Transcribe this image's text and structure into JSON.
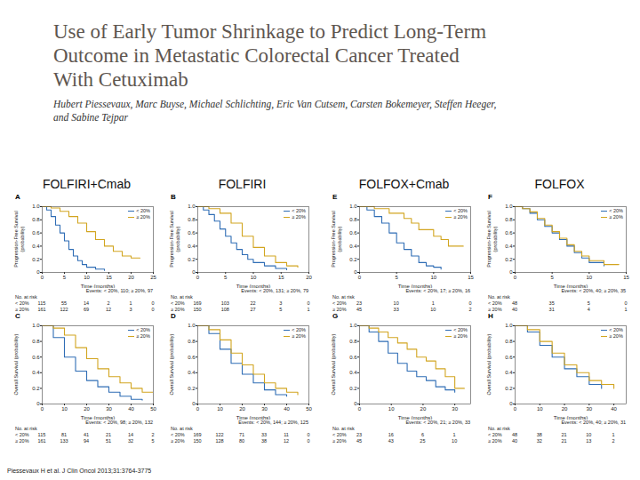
{
  "header": {
    "title_lines": [
      "Use of Early Tumor Shrinkage to Predict Long-Term",
      "Outcome in Metastatic Colorectal Cancer Treated",
      "With Cetuximab"
    ],
    "authors_lines": [
      "Hubert Piessevaux, Marc Buyse, Michael Schlichting, Eric Van Cutsem, Carsten Bokemeyer, Steffen Heeger,",
      "and Sabine Tejpar"
    ],
    "columns": [
      "FOLFIRI+Cmab",
      "FOLFIRI",
      "FOLFOX+Cmab",
      "FOLFOX"
    ]
  },
  "footer": "Piessevaux H et al. J Clin Oncol 2013;31:3764-3775",
  "chart_data": [
    {
      "type": "line",
      "title": "A",
      "line_style": "step",
      "legend": "top-right",
      "x_label": "Time (months)",
      "y_label": "Progression-Free Survival (probability)",
      "xlim": [
        0,
        25
      ],
      "xticks": [
        0,
        5,
        10,
        15,
        20,
        25
      ],
      "ylim": [
        0,
        1
      ],
      "yticks": [
        0,
        0.2,
        0.4,
        0.6,
        0.8,
        {
          "value": 1,
          "label": "1.0"
        }
      ],
      "annotation": "Events: < 20%, 110; ≥ 20%, 97",
      "series": [
        {
          "name": "< 20%",
          "color": "#2f6db5",
          "x": [
            0,
            1,
            2,
            3,
            4,
            5,
            6,
            7,
            8,
            9,
            10,
            12,
            14
          ],
          "values": [
            1,
            0.95,
            0.85,
            0.72,
            0.6,
            0.48,
            0.35,
            0.25,
            0.18,
            0.12,
            0.08,
            0.05,
            0.03
          ]
        },
        {
          "name": "≥ 20%",
          "color": "#d2a520",
          "x": [
            0,
            2,
            4,
            6,
            8,
            10,
            12,
            14,
            16,
            18,
            20,
            22
          ],
          "values": [
            1,
            0.98,
            0.93,
            0.85,
            0.75,
            0.62,
            0.5,
            0.4,
            0.32,
            0.25,
            0.22,
            0.22
          ]
        }
      ],
      "risk_table": {
        "title": "No. at risk",
        "rows": [
          {
            "name": "< 20%",
            "values": [
              115,
              55,
              14,
              2,
              1,
              0
            ]
          },
          {
            "name": "≥ 20%",
            "values": [
              161,
              122,
              69,
              12,
              3,
              0
            ]
          }
        ]
      }
    },
    {
      "type": "line",
      "title": "B",
      "line_style": "step",
      "legend": "top-right",
      "x_label": "Time (months)",
      "y_label": "Progression-Free Survival (probability)",
      "xlim": [
        0,
        20
      ],
      "xticks": [
        0,
        5,
        10,
        15,
        20
      ],
      "ylim": [
        0,
        1
      ],
      "yticks": [
        0,
        0.2,
        0.4,
        0.6,
        0.8,
        {
          "value": 1,
          "label": "1.0"
        }
      ],
      "annotation": "Events: < 20%, 131; ≥ 20%, 79",
      "series": [
        {
          "name": "< 20%",
          "color": "#2f6db5",
          "x": [
            0,
            1,
            2,
            3,
            4,
            5,
            6,
            7,
            8,
            9,
            10,
            12,
            14,
            16
          ],
          "values": [
            1,
            0.95,
            0.88,
            0.78,
            0.66,
            0.55,
            0.45,
            0.35,
            0.27,
            0.2,
            0.15,
            0.1,
            0.06,
            0.04
          ]
        },
        {
          "name": "≥ 20%",
          "color": "#d2a520",
          "x": [
            0,
            2,
            4,
            6,
            8,
            10,
            12,
            14,
            16,
            18
          ],
          "values": [
            1,
            0.97,
            0.9,
            0.75,
            0.55,
            0.38,
            0.25,
            0.15,
            0.1,
            0.08
          ]
        }
      ],
      "risk_table": {
        "title": "No. at risk",
        "rows": [
          {
            "name": "< 20%",
            "values": [
              169,
              103,
              22,
              3,
              0
            ]
          },
          {
            "name": "≥ 20%",
            "values": [
              150,
              108,
              27,
              5,
              1
            ]
          }
        ]
      }
    },
    {
      "type": "line",
      "title": "E",
      "line_style": "step",
      "legend": "top-right",
      "x_label": "Time (months)",
      "y_label": "Progression-Free Survival (probability)",
      "xlim": [
        0,
        15
      ],
      "xticks": [
        0,
        5,
        10,
        15
      ],
      "ylim": [
        0,
        1
      ],
      "yticks": [
        0,
        0.2,
        0.4,
        0.6,
        0.8,
        {
          "value": 1,
          "label": "1.0"
        }
      ],
      "annotation": "Events: < 20%, 17; ≥ 20%, 16",
      "series": [
        {
          "name": "< 20%",
          "color": "#2f6db5",
          "x": [
            0,
            1,
            2,
            3,
            4,
            5,
            6,
            7,
            8,
            9,
            10,
            11
          ],
          "values": [
            1,
            0.95,
            0.85,
            0.75,
            0.6,
            0.45,
            0.35,
            0.25,
            0.15,
            0.1,
            0.08,
            0.05
          ]
        },
        {
          "name": "≥ 20%",
          "color": "#d2a520",
          "x": [
            0,
            2,
            4,
            6,
            7,
            8,
            10,
            11,
            12,
            14
          ],
          "values": [
            1,
            0.97,
            0.9,
            0.82,
            0.75,
            0.65,
            0.55,
            0.5,
            0.4,
            0.4
          ]
        }
      ],
      "risk_table": {
        "title": "No. at risk",
        "rows": [
          {
            "name": "< 20%",
            "values": [
              23,
              10,
              1,
              0
            ]
          },
          {
            "name": "≥ 20%",
            "values": [
              45,
              33,
              10,
              2
            ]
          }
        ]
      }
    },
    {
      "type": "line",
      "title": "F",
      "line_style": "step",
      "legend": "top-right",
      "x_label": "Time (months)",
      "y_label": "Progression-Free Survival (probability)",
      "xlim": [
        0,
        15
      ],
      "xticks": [
        0,
        5,
        10,
        15
      ],
      "ylim": [
        0,
        1
      ],
      "yticks": [
        0,
        0.2,
        0.4,
        0.6,
        0.8,
        {
          "value": 1,
          "label": "1.0"
        }
      ],
      "annotation": "Events: < 20%, 40; ≥ 20%, 35",
      "series": [
        {
          "name": "< 20%",
          "color": "#2f6db5",
          "x": [
            0,
            1,
            2,
            3,
            4,
            5,
            6,
            7,
            8,
            9,
            10,
            12
          ],
          "values": [
            1,
            0.97,
            0.9,
            0.8,
            0.7,
            0.6,
            0.5,
            0.4,
            0.3,
            0.22,
            0.15,
            0.1
          ]
        },
        {
          "name": "≥ 20%",
          "color": "#d2a520",
          "x": [
            0,
            1,
            2,
            3,
            4,
            5,
            6,
            7,
            8,
            9,
            10,
            12,
            14
          ],
          "values": [
            1,
            0.97,
            0.92,
            0.82,
            0.72,
            0.62,
            0.52,
            0.42,
            0.32,
            0.25,
            0.18,
            0.12,
            0.12
          ]
        }
      ],
      "risk_table": {
        "title": "No. at risk",
        "rows": [
          {
            "name": "< 20%",
            "values": [
              48,
              35,
              5,
              0
            ]
          },
          {
            "name": "≥ 20%",
            "values": [
              40,
              31,
              4,
              1
            ]
          }
        ]
      }
    },
    {
      "type": "line",
      "title": "C",
      "line_style": "step",
      "legend": "top-right",
      "x_label": "Time (months)",
      "y_label": "Overall Survival (probability)",
      "xlim": [
        0,
        50
      ],
      "xticks": [
        0,
        10,
        20,
        30,
        40,
        50
      ],
      "ylim": [
        0,
        1
      ],
      "yticks": [
        0,
        0.2,
        0.4,
        0.6,
        0.8,
        {
          "value": 1,
          "label": "1.0"
        }
      ],
      "annotation": "Events: < 20%, 98; ≥ 20%, 132",
      "series": [
        {
          "name": "< 20%",
          "color": "#2f6db5",
          "x": [
            0,
            5,
            10,
            15,
            20,
            25,
            30,
            35,
            40,
            45
          ],
          "values": [
            1,
            0.85,
            0.6,
            0.42,
            0.3,
            0.22,
            0.15,
            0.1,
            0.06,
            0.05
          ]
        },
        {
          "name": "≥ 20%",
          "color": "#d2a520",
          "x": [
            0,
            5,
            10,
            15,
            20,
            25,
            30,
            35,
            40,
            45,
            50
          ],
          "values": [
            1,
            0.97,
            0.88,
            0.72,
            0.58,
            0.45,
            0.35,
            0.27,
            0.2,
            0.15,
            0.12
          ]
        }
      ],
      "risk_table": {
        "title": "No. at risk",
        "rows": [
          {
            "name": "< 20%",
            "values": [
              115,
              81,
              41,
              21,
              14,
              2
            ]
          },
          {
            "name": "≥ 20%",
            "values": [
              161,
              133,
              94,
              51,
              32,
              5
            ]
          }
        ]
      }
    },
    {
      "type": "line",
      "title": "D",
      "line_style": "step",
      "legend": "top-right",
      "x_label": "Time (months)",
      "y_label": "Overall Survival (probability)",
      "xlim": [
        0,
        50
      ],
      "xticks": [
        0,
        10,
        20,
        30,
        40,
        50
      ],
      "ylim": [
        0,
        1
      ],
      "yticks": [
        0,
        0.2,
        0.4,
        0.6,
        0.8,
        {
          "value": 1,
          "label": "1.0"
        }
      ],
      "annotation": "Events: < 20%, 144; ≥ 20%, 125",
      "series": [
        {
          "name": "< 20%",
          "color": "#2f6db5",
          "x": [
            0,
            5,
            10,
            15,
            20,
            25,
            30,
            35,
            40
          ],
          "values": [
            1,
            0.9,
            0.7,
            0.52,
            0.38,
            0.27,
            0.18,
            0.12,
            0.1
          ]
        },
        {
          "name": "≥ 20%",
          "color": "#d2a520",
          "x": [
            0,
            5,
            10,
            15,
            20,
            25,
            30,
            35,
            40,
            45
          ],
          "values": [
            1,
            0.95,
            0.82,
            0.65,
            0.5,
            0.38,
            0.27,
            0.2,
            0.15,
            0.12
          ]
        }
      ],
      "risk_table": {
        "title": "No. at risk",
        "rows": [
          {
            "name": "< 20%",
            "values": [
              169,
              122,
              71,
              33,
              11,
              0
            ]
          },
          {
            "name": "≥ 20%",
            "values": [
              150,
              128,
              80,
              38,
              12,
              0
            ]
          }
        ]
      }
    },
    {
      "type": "line",
      "title": "G",
      "line_style": "step",
      "legend": "top-right",
      "x_label": "Time (months)",
      "y_label": "Overall Survival (probability)",
      "xlim": [
        0,
        35
      ],
      "xticks": [
        0,
        10,
        20,
        30
      ],
      "ylim": [
        0,
        1
      ],
      "yticks": [
        0,
        0.2,
        0.4,
        0.6,
        0.8,
        {
          "value": 1,
          "label": "1.0"
        }
      ],
      "annotation": "Events: < 20%, 21; ≥ 20%, 33",
      "series": [
        {
          "name": "< 20%",
          "color": "#2f6db5",
          "x": [
            0,
            3,
            6,
            9,
            12,
            15,
            18,
            21,
            24,
            27,
            30
          ],
          "values": [
            1,
            0.92,
            0.8,
            0.65,
            0.52,
            0.42,
            0.35,
            0.3,
            0.22,
            0.18,
            0.15
          ]
        },
        {
          "name": "≥ 20%",
          "color": "#d2a520",
          "x": [
            0,
            3,
            6,
            9,
            12,
            15,
            18,
            21,
            24,
            27,
            30,
            33
          ],
          "values": [
            1,
            0.97,
            0.92,
            0.85,
            0.78,
            0.7,
            0.6,
            0.55,
            0.45,
            0.35,
            0.2,
            0.2
          ]
        }
      ],
      "risk_table": {
        "title": "No. at risk",
        "rows": [
          {
            "name": "< 20%",
            "values": [
              23,
              16,
              6,
              1
            ]
          },
          {
            "name": "≥ 20%",
            "values": [
              45,
              43,
              25,
              10
            ]
          }
        ]
      }
    },
    {
      "type": "line",
      "title": "H",
      "line_style": "step",
      "legend": "top-right",
      "x_label": "Time (months)",
      "y_label": "Overall Survival (probability)",
      "xlim": [
        0,
        45
      ],
      "xticks": [
        0,
        10,
        20,
        30,
        40
      ],
      "ylim": [
        0,
        1
      ],
      "yticks": [
        0,
        0.2,
        0.4,
        0.6,
        0.8,
        {
          "value": 1,
          "label": "1.0"
        }
      ],
      "annotation": "Events: < 20%, 40; ≥ 20%, 31",
      "series": [
        {
          "name": "< 20%",
          "color": "#2f6db5",
          "x": [
            0,
            5,
            10,
            15,
            20,
            25,
            30,
            35
          ],
          "values": [
            1,
            0.92,
            0.75,
            0.6,
            0.45,
            0.35,
            0.25,
            0.2
          ]
        },
        {
          "name": "≥ 20%",
          "color": "#d2a520",
          "x": [
            0,
            5,
            10,
            15,
            20,
            25,
            30,
            35,
            40
          ],
          "values": [
            1,
            0.95,
            0.8,
            0.65,
            0.5,
            0.4,
            0.3,
            0.25,
            0.2
          ]
        }
      ],
      "risk_table": {
        "title": "No. at risk",
        "rows": [
          {
            "name": "< 20%",
            "values": [
              48,
              38,
              21,
              10,
              1
            ]
          },
          {
            "name": "≥ 20%",
            "values": [
              40,
              32,
              21,
              13,
              2
            ]
          }
        ]
      }
    }
  ]
}
